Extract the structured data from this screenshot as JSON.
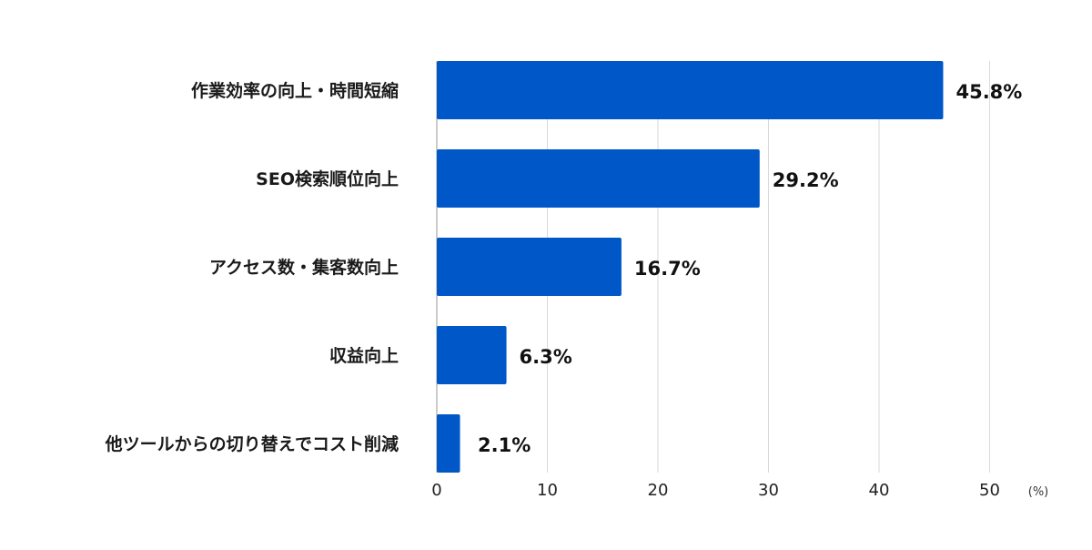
{
  "chart_data": {
    "type": "bar",
    "orientation": "horizontal",
    "categories": [
      "作業効率の向上・時間短縮",
      "SEO検索順位向上",
      "アクセス数・集客数向上",
      "収益向上",
      "他ツールからの切り替えでコスト削減"
    ],
    "values": [
      45.8,
      29.2,
      16.7,
      6.3,
      2.1
    ],
    "value_labels": [
      "45.8%",
      "29.2%",
      "16.7%",
      "6.3%",
      "2.1%"
    ],
    "xlim": [
      0,
      50
    ],
    "x_ticks": [
      0,
      10,
      20,
      30,
      40,
      50
    ],
    "x_tick_labels": [
      "0",
      "10",
      "20",
      "30",
      "40",
      "50"
    ],
    "x_unit": "(%)",
    "bar_color": "#0057c8",
    "grid": true,
    "legend": "none"
  }
}
